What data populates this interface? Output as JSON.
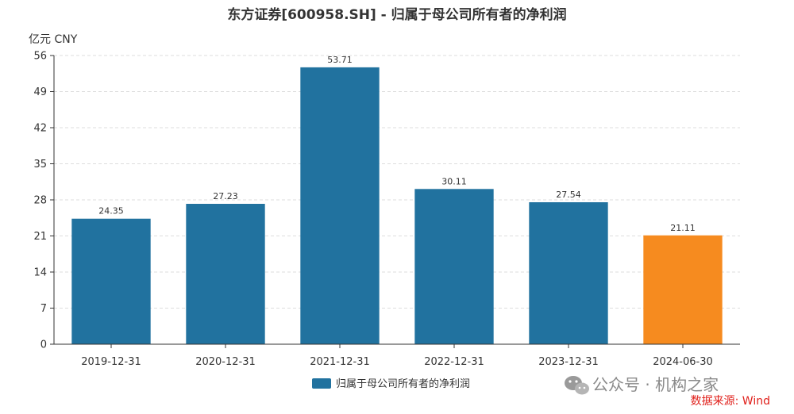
{
  "chart_data": {
    "type": "bar",
    "title": "东方证券[600958.SH] - 归属于母公司所有者的净利润",
    "unit_label": "亿元  CNY",
    "categories": [
      "2019-12-31",
      "2020-12-31",
      "2021-12-31",
      "2022-12-31",
      "2023-12-31",
      "2024-06-30"
    ],
    "series": [
      {
        "name": "归属于母公司所有者的净利润",
        "values": [
          24.35,
          27.23,
          53.71,
          30.11,
          27.54,
          21.11
        ],
        "value_labels": [
          "24.35",
          "27.23",
          "53.71",
          "30.11",
          "27.54",
          "21.11"
        ],
        "color": "#21729f"
      }
    ],
    "highlight_index": 5,
    "highlight_color": "#f68b1f",
    "ylim": [
      0,
      56
    ],
    "yticks": [
      0,
      7,
      14,
      21,
      28,
      35,
      42,
      49,
      56
    ],
    "grid": true,
    "legend_position": "bottom-center"
  },
  "watermark": {
    "text": "公众号 · 机构之家",
    "icon": "wechat-icon"
  },
  "source": {
    "text": "数据来源: Wind"
  }
}
